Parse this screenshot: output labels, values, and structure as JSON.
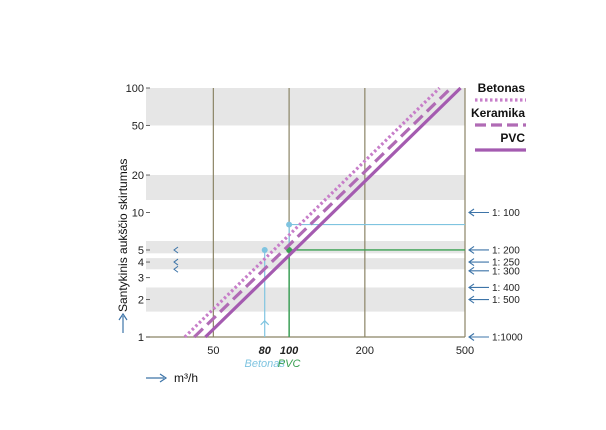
{
  "chart_data": {
    "type": "line",
    "xscale": "log",
    "yscale": "log",
    "xlim": [
      27,
      500
    ],
    "ylim": [
      1,
      100
    ],
    "x_ticks": [
      50,
      80,
      100,
      200,
      500
    ],
    "x_tick_labels": [
      "50",
      "80",
      "100",
      "200",
      "500"
    ],
    "y_ticks": [
      1,
      2,
      3,
      4,
      5,
      10,
      20,
      50,
      100
    ],
    "y_tick_labels": [
      "1",
      "2",
      "3",
      "4",
      "5",
      "10",
      "20",
      "50",
      "100"
    ],
    "ylabel": "Santykinis aukščio skirtumas",
    "xlabel": "m³/h",
    "grid": true,
    "legend_position": "right",
    "series": [
      {
        "name": "Betonas",
        "style": "dotted",
        "color": "#c77ec9",
        "points": [
          [
            38.5,
            1
          ],
          [
            396,
            100
          ]
        ]
      },
      {
        "name": "Keramika",
        "style": "dashed",
        "color": "#b06bb5",
        "points": [
          [
            42,
            1
          ],
          [
            440,
            100
          ]
        ]
      },
      {
        "name": "PVC",
        "style": "solid",
        "color": "#a45bb0",
        "points": [
          [
            46.5,
            1
          ],
          [
            480,
            100
          ]
        ]
      }
    ],
    "highlights": [
      {
        "label_top": "80",
        "label_bottom": "Betonas",
        "x": 80,
        "y": 5,
        "color": "#7fc4e0"
      },
      {
        "label_top": "100",
        "label_bottom": "PVC",
        "x": 100,
        "y": 5,
        "color": "#3aa052"
      }
    ],
    "extra_guides": [
      {
        "x": 100,
        "y": 8,
        "color": "#7fc4e0"
      }
    ],
    "slope_markers": [
      {
        "label": "1: 100",
        "y": 10
      },
      {
        "label": "1: 200",
        "y": 5
      },
      {
        "label": "1: 250",
        "y": 4
      },
      {
        "label": "1: 300",
        "y": 3.4
      },
      {
        "label": "1: 400",
        "y": 2.5
      },
      {
        "label": "1: 500",
        "y": 2
      },
      {
        "label": "1:1000",
        "y": 1
      }
    ],
    "band_colors": "#e6e6e6",
    "gridline_color": "#8b8466",
    "arrow_color": "#3d74a8"
  }
}
